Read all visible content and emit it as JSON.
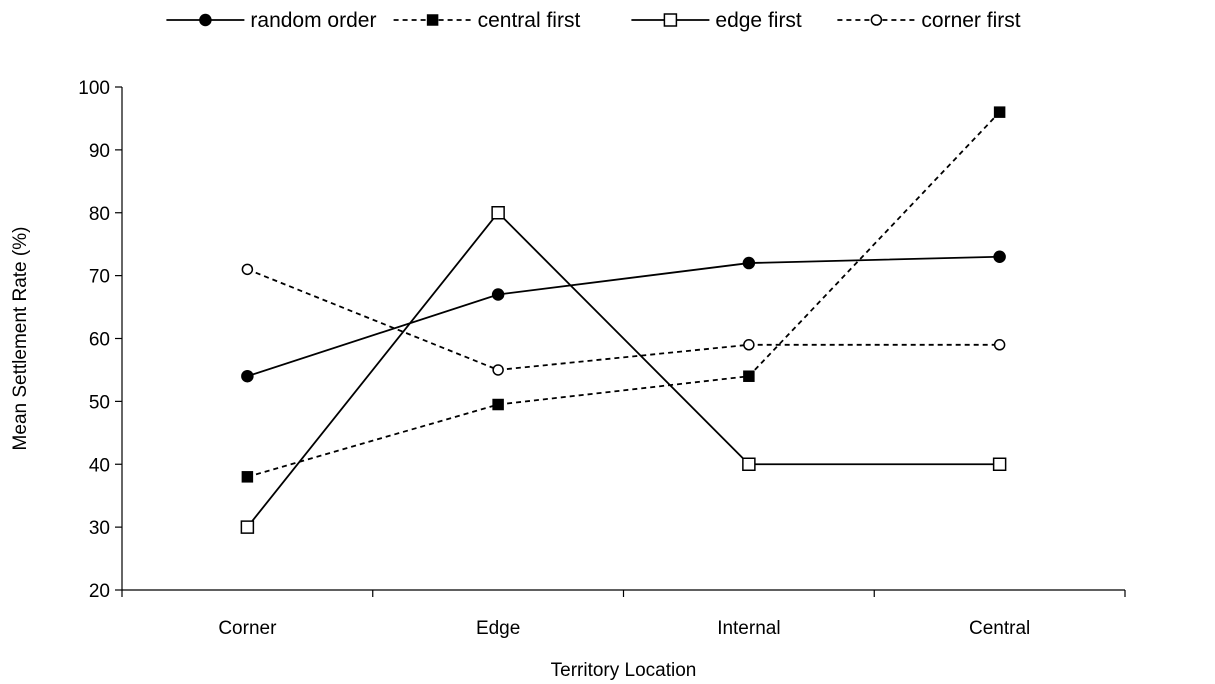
{
  "chart_data": {
    "type": "line",
    "title": "",
    "xlabel": "Territory Location",
    "ylabel": "Mean Settlement Rate (%)",
    "categories": [
      "Corner",
      "Edge",
      "Internal",
      "Central"
    ],
    "ylim": [
      20,
      100
    ],
    "yticks": [
      20,
      30,
      40,
      50,
      60,
      70,
      80,
      90,
      100
    ],
    "grid": false,
    "legend_position": "top",
    "series": [
      {
        "name": "random order",
        "values": [
          54,
          67,
          72,
          73
        ],
        "line": "solid",
        "marker": "filled-circle",
        "color": "#000000"
      },
      {
        "name": "central first",
        "values": [
          38,
          49.5,
          54,
          96
        ],
        "line": "dashed",
        "marker": "filled-square",
        "color": "#000000"
      },
      {
        "name": "edge first",
        "values": [
          30,
          80,
          40,
          40
        ],
        "line": "solid",
        "marker": "open-square",
        "color": "#000000"
      },
      {
        "name": "corner first",
        "values": [
          71,
          55,
          59,
          59
        ],
        "line": "dashed",
        "marker": "open-circle",
        "color": "#000000"
      }
    ]
  }
}
